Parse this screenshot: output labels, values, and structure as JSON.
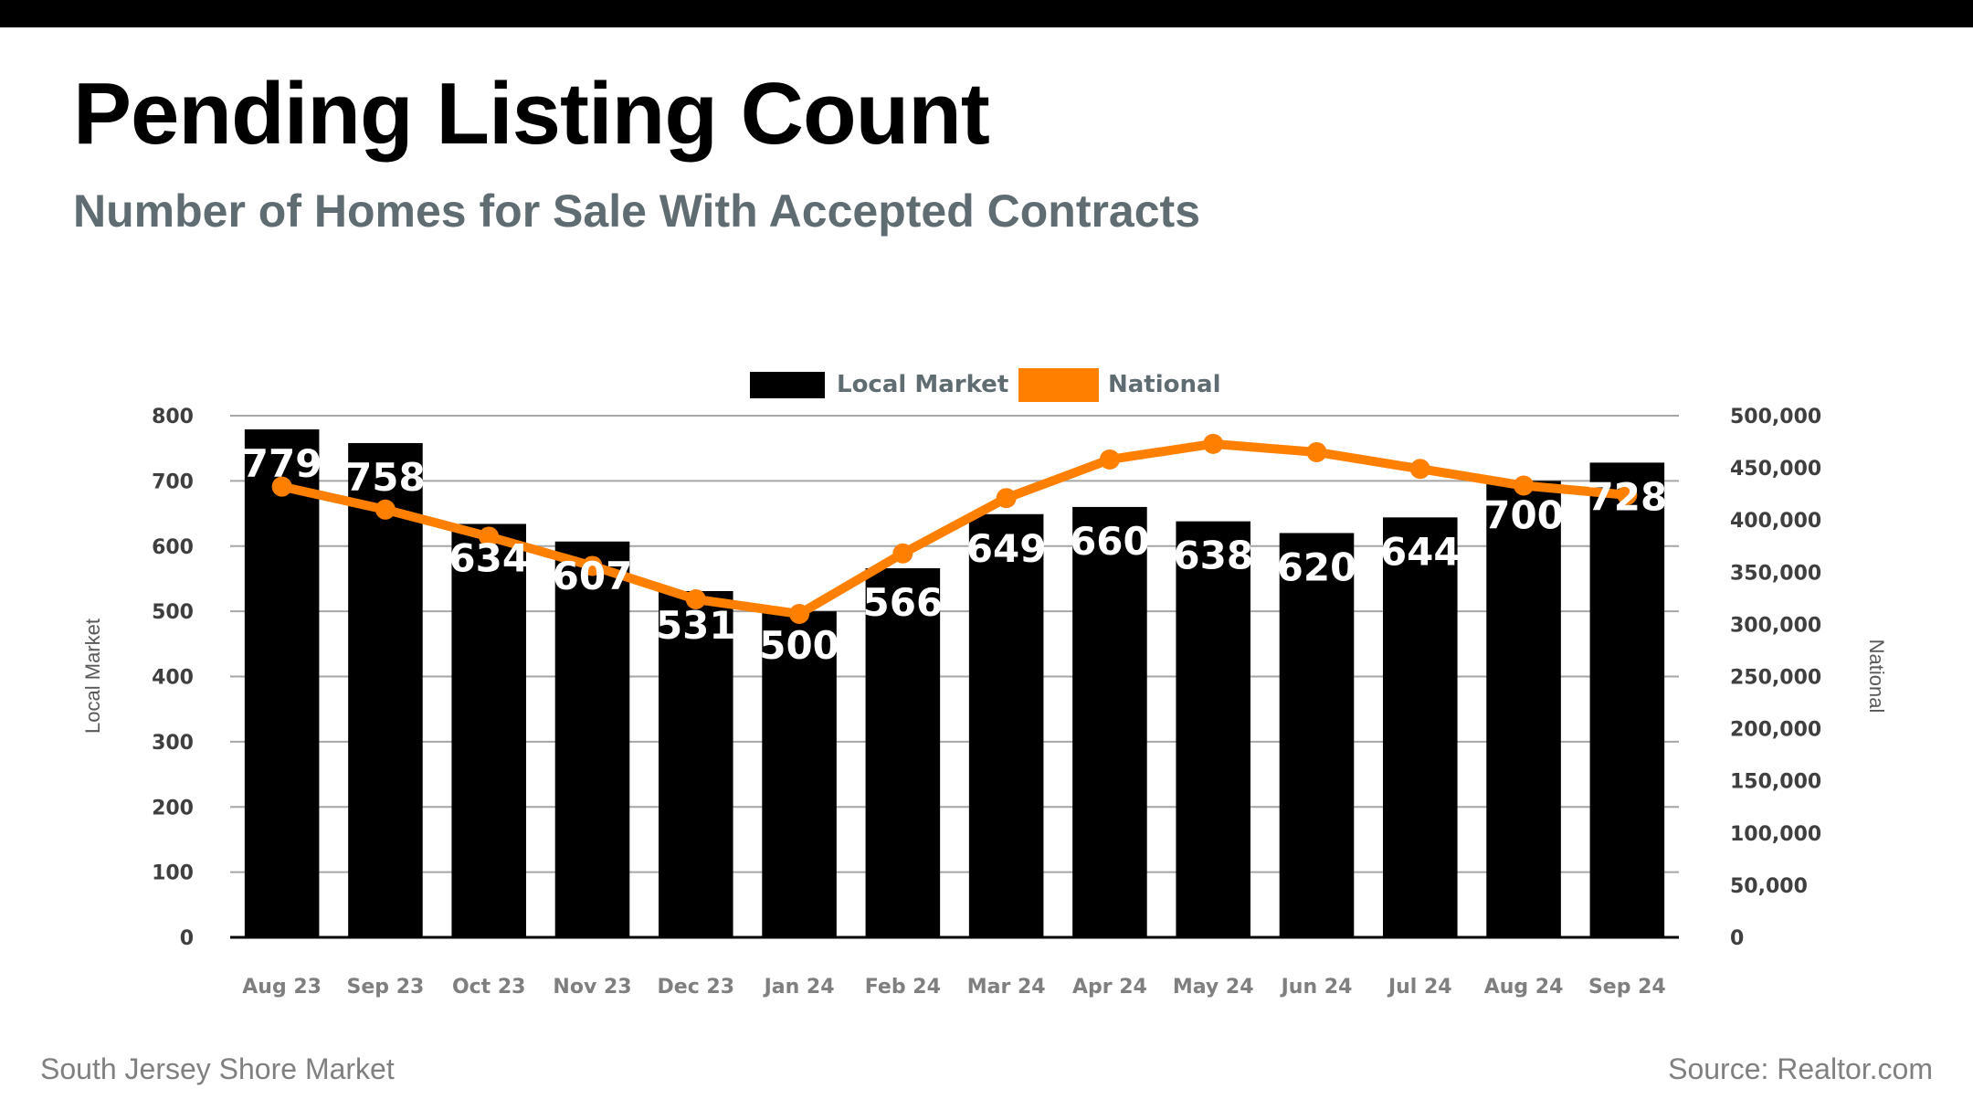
{
  "header": {
    "title": "Pending Listing Count",
    "subtitle": "Number of Homes for Sale With Accepted Contracts"
  },
  "footer": {
    "left": "South Jersey Shore Market",
    "right": "Source: Realtor.com"
  },
  "colors": {
    "local": "#000000",
    "national": "#ff8000",
    "subtitle": "#5f6d72",
    "gridline": "#a6a6a6"
  },
  "chart_data": {
    "type": "bar",
    "title": "Pending Listing Count",
    "subtitle": "Number of Homes for Sale With Accepted Contracts",
    "categories": [
      "Aug 23",
      "Sep 23",
      "Oct 23",
      "Nov 23",
      "Dec 23",
      "Jan 24",
      "Feb 24",
      "Mar 24",
      "Apr 24",
      "May 24",
      "Jun 24",
      "Jul 24",
      "Aug 24",
      "Sep 24"
    ],
    "series": [
      {
        "name": "Local Market",
        "type": "bar",
        "axis": "left",
        "values": [
          779,
          758,
          634,
          607,
          531,
          500,
          566,
          649,
          660,
          638,
          620,
          644,
          700,
          728
        ],
        "data_labels": true
      },
      {
        "name": "National",
        "type": "line",
        "axis": "right",
        "values": [
          432000,
          410000,
          384000,
          356000,
          324000,
          310000,
          368000,
          421000,
          458000,
          473000,
          465000,
          449000,
          433000,
          424000
        ],
        "data_labels": false
      }
    ],
    "xlabel": "",
    "ylabel": "Local Market",
    "y2label": "National",
    "ylim": [
      0,
      800
    ],
    "y2lim": [
      0,
      500000
    ],
    "yticks": [
      "0",
      "100",
      "200",
      "300",
      "400",
      "500",
      "600",
      "700",
      "800"
    ],
    "y2ticks": [
      "0",
      "50,000",
      "100,000",
      "150,000",
      "200,000",
      "250,000",
      "300,000",
      "350,000",
      "400,000",
      "450,000",
      "500,000"
    ],
    "grid": true,
    "legend": {
      "position": "top-center",
      "entries": [
        "Local Market",
        "National"
      ]
    }
  }
}
